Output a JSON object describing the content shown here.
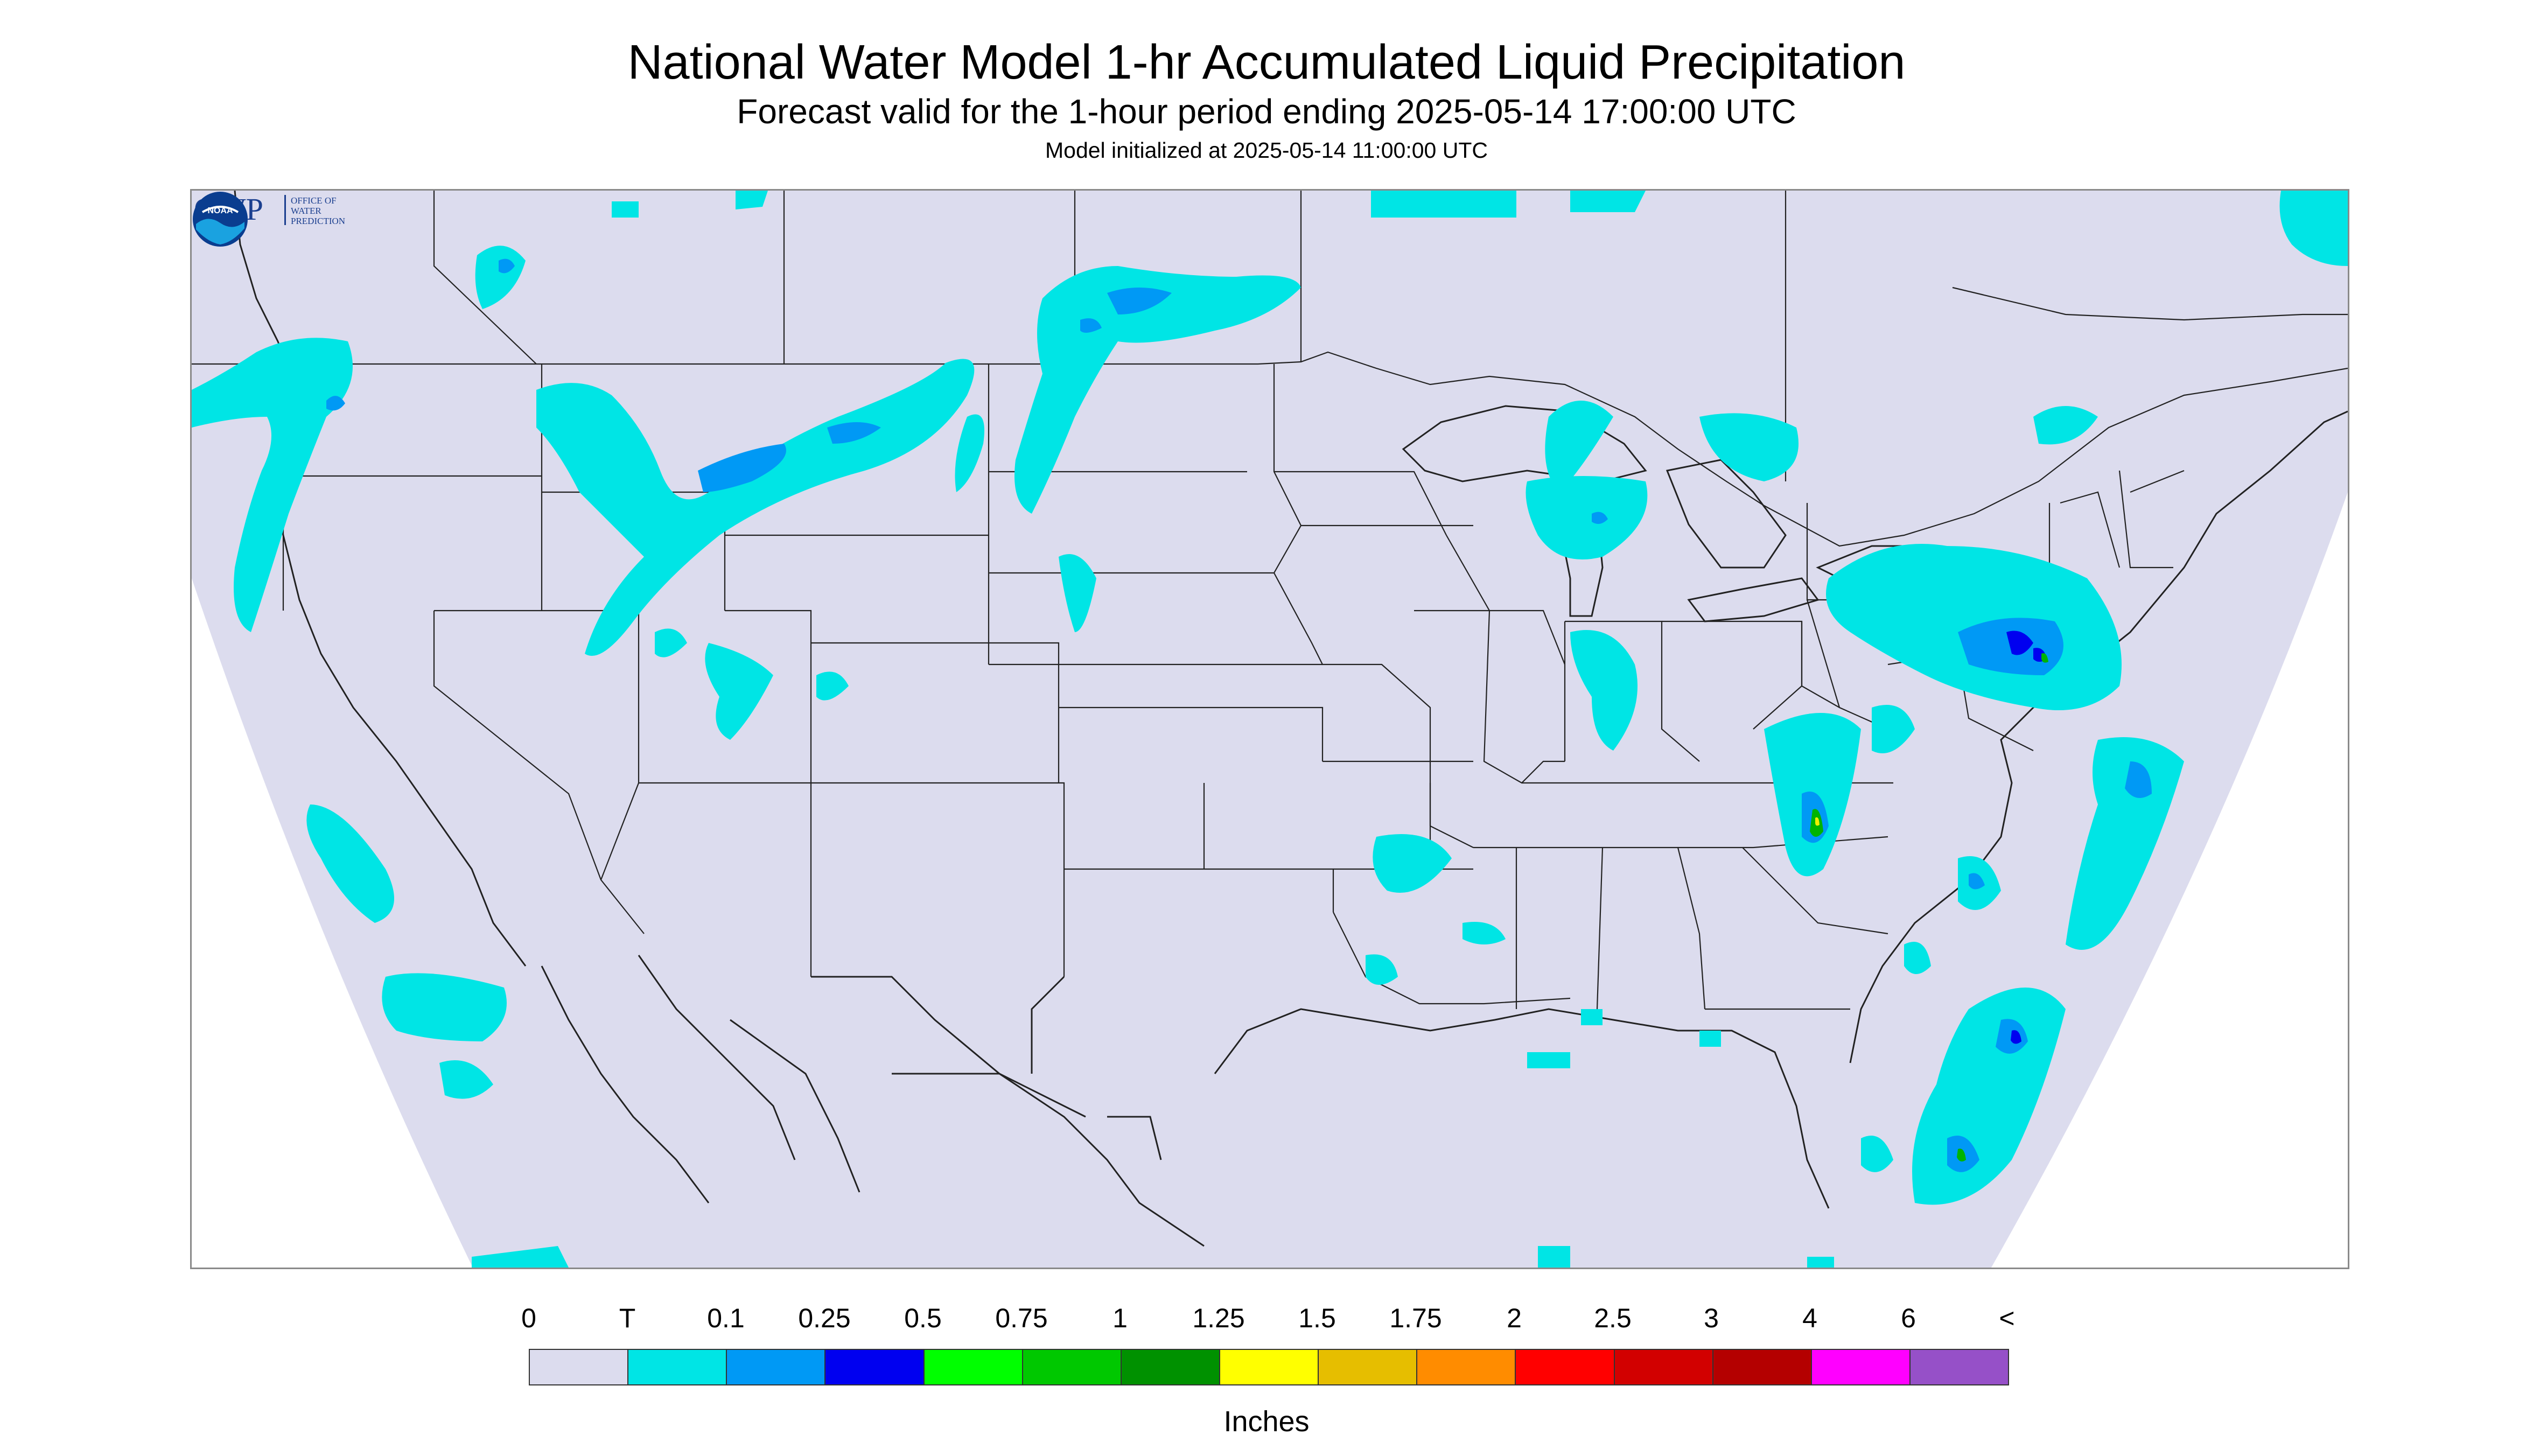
{
  "header": {
    "title": "National Water Model 1-hr Accumulated Liquid Precipitation",
    "subtitle": "Forecast valid for the 1-hour period ending 2025-05-14 17:00:00 UTC",
    "model_init": "Model initialized at 2025-05-14 11:00:00 UTC"
  },
  "map": {
    "background_color": "#dcdcee",
    "boundary_color": "#222222",
    "precip_colors": {
      "trace": "#00e5e5",
      "light": "#0099f5",
      "moderate": "#0000f0",
      "heavy": "#00b400",
      "very_heavy": "#f0f000"
    }
  },
  "logos": {
    "owp_mark": "OWP",
    "owp_lines": [
      "OFFICE OF",
      "WATER",
      "PREDICTION"
    ],
    "noaa_mark": "NOAA"
  },
  "legend": {
    "labels": [
      "0",
      "T",
      "0.1",
      "0.25",
      "0.5",
      "0.75",
      "1",
      "1.25",
      "1.5",
      "1.75",
      "2",
      "2.5",
      "3",
      "4",
      "6",
      "<"
    ],
    "colors": [
      "#dcdcee",
      "#00e5e5",
      "#0099f5",
      "#0000f0",
      "#00ff00",
      "#00c800",
      "#009100",
      "#ffff00",
      "#e6be00",
      "#ff8c00",
      "#ff0000",
      "#d20000",
      "#b40000",
      "#ff00ff",
      "#9650c8"
    ],
    "units": "Inches"
  }
}
